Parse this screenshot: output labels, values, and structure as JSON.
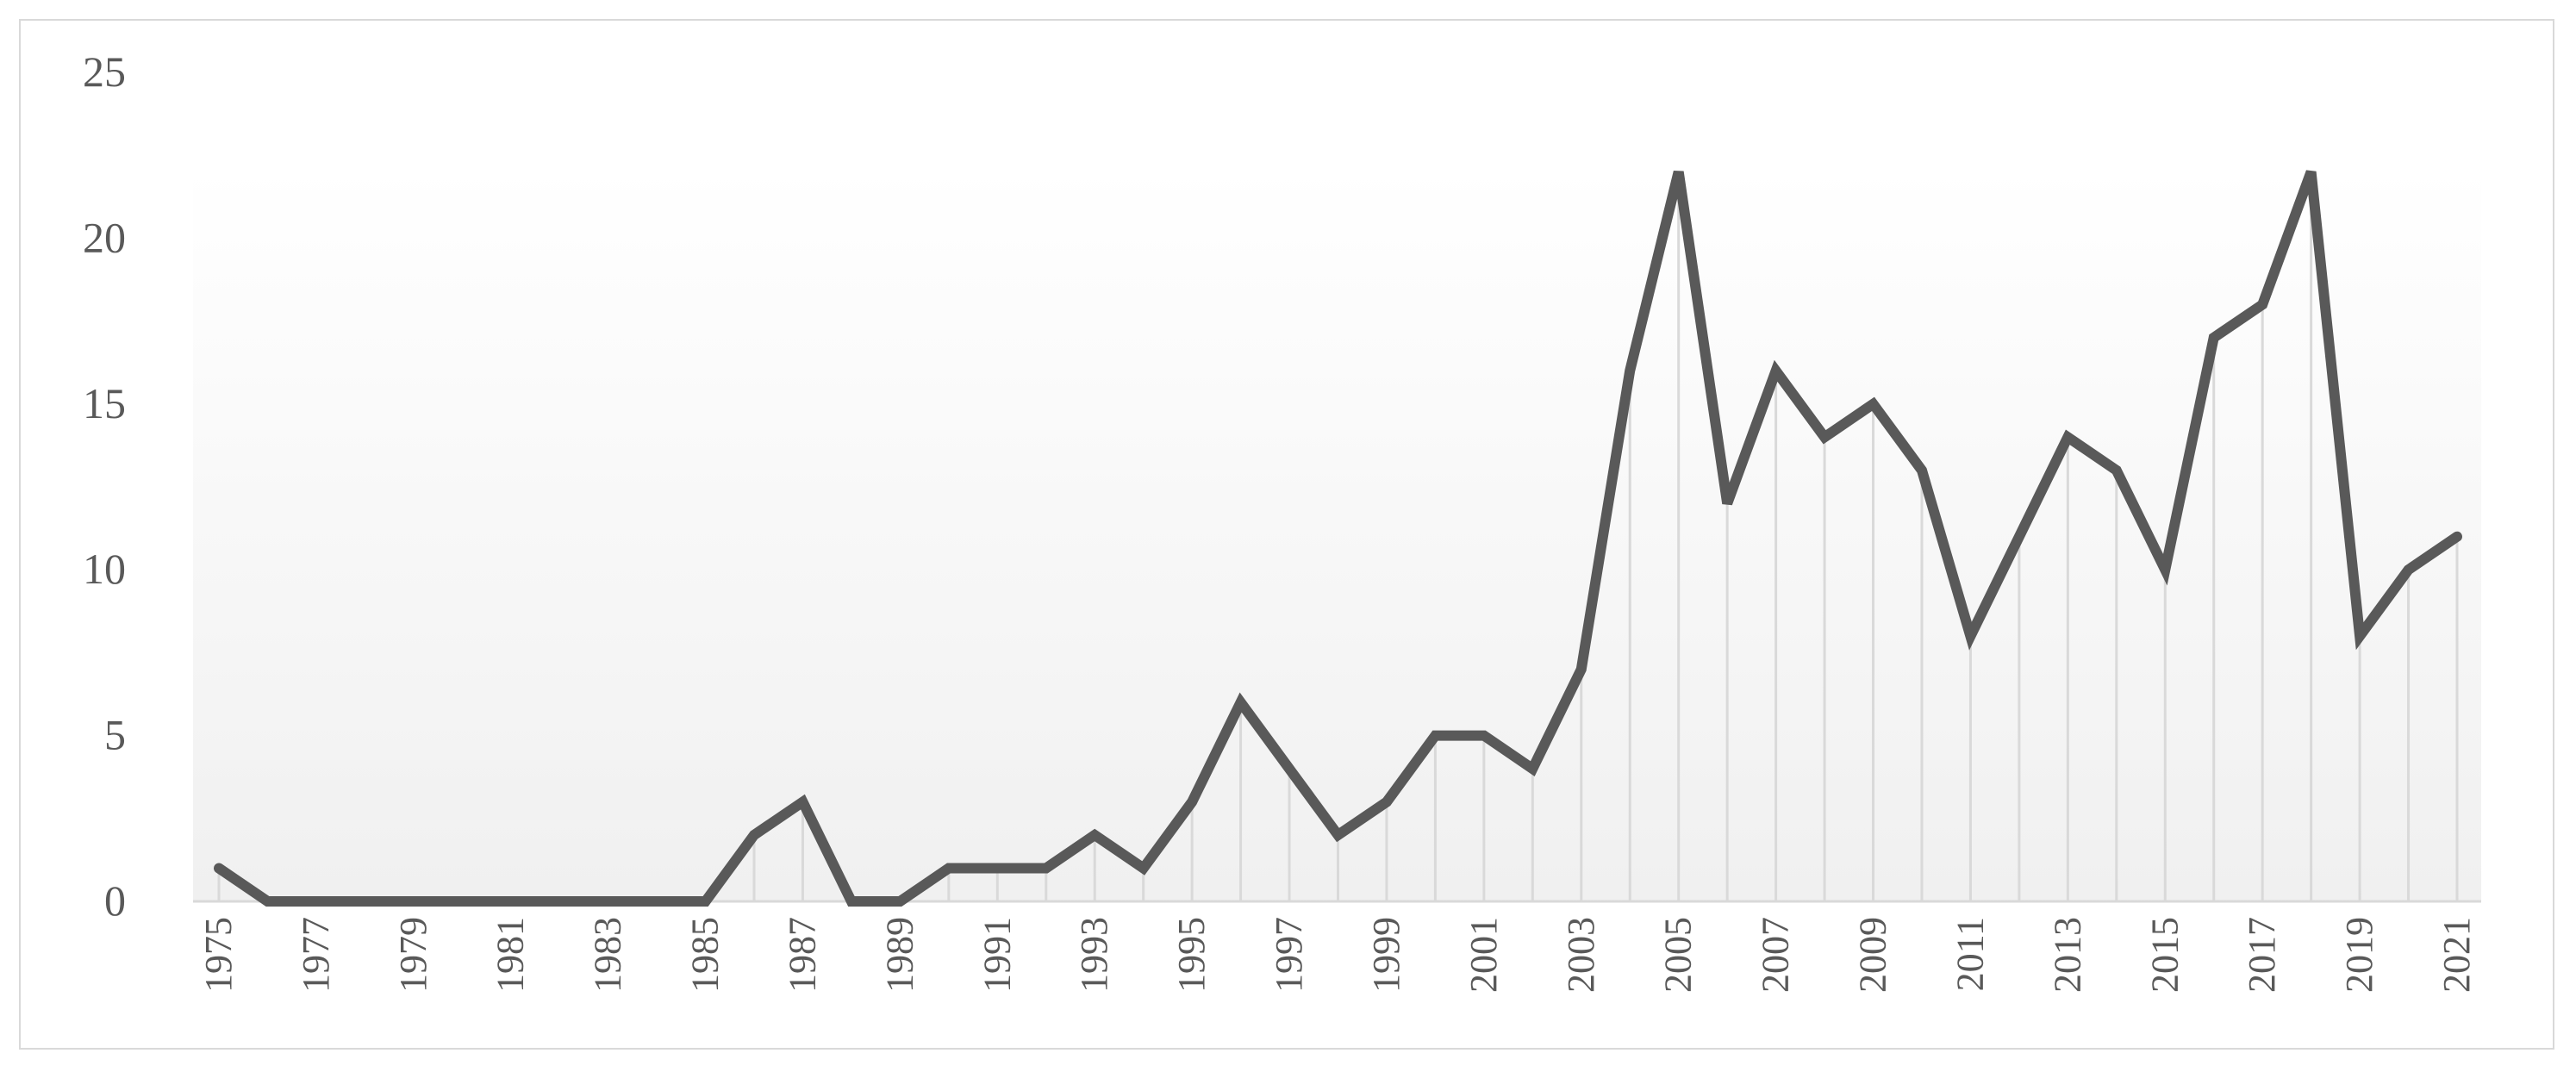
{
  "chart_data": {
    "type": "line",
    "title": "",
    "xlabel": "",
    "ylabel": "",
    "x": [
      1975,
      1976,
      1977,
      1978,
      1979,
      1980,
      1981,
      1982,
      1983,
      1984,
      1985,
      1986,
      1987,
      1988,
      1989,
      1990,
      1991,
      1992,
      1993,
      1994,
      1995,
      1996,
      1997,
      1998,
      1999,
      2000,
      2001,
      2002,
      2003,
      2004,
      2005,
      2006,
      2007,
      2008,
      2009,
      2010,
      2011,
      2012,
      2013,
      2014,
      2015,
      2016,
      2017,
      2018,
      2019,
      2020,
      2021
    ],
    "x_tick_labels": [
      "1975",
      "1977",
      "1979",
      "1981",
      "1983",
      "1985",
      "1987",
      "1989",
      "1991",
      "1993",
      "1995",
      "1997",
      "1999",
      "2001",
      "2003",
      "2005",
      "2007",
      "2009",
      "2011",
      "2013",
      "2015",
      "2017",
      "2019",
      "2021"
    ],
    "series": [
      {
        "values": [
          1,
          0,
          0,
          0,
          0,
          0,
          0,
          0,
          0,
          0,
          0,
          2,
          3,
          0,
          0,
          1,
          1,
          1,
          2,
          1,
          3,
          6,
          4,
          2,
          3,
          5,
          5,
          4,
          7,
          16,
          22,
          12,
          16,
          14,
          15,
          13,
          8,
          11,
          14,
          13,
          10,
          17,
          18,
          22,
          8,
          10,
          11
        ]
      }
    ],
    "y_ticks": [
      "0",
      "5",
      "10",
      "15",
      "20",
      "25"
    ],
    "ylim": [
      0,
      25
    ],
    "grid": "vertical drop lines",
    "legend": "none",
    "colors": {
      "line": "#595959",
      "drop_line": "#d9d9d9",
      "plot_top": "#ffffff",
      "plot_bottom": "#f0f0f0",
      "axis": "#d9d9d9"
    }
  }
}
